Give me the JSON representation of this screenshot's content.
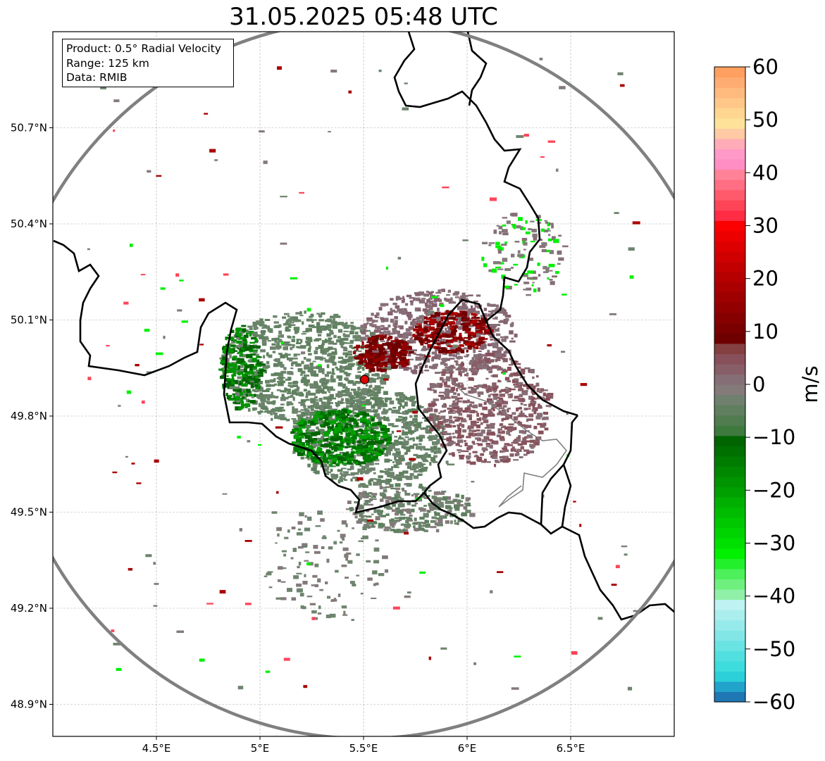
{
  "title": "31.05.2025 05:48 UTC",
  "info_box": {
    "product": "Product: 0.5° Radial Velocity",
    "range": "Range: 125 km",
    "data": "Data: RMIB"
  },
  "map": {
    "lon_range": [
      4.0,
      7.0
    ],
    "lat_range": [
      48.8,
      51.0
    ],
    "lon_ticks": [
      {
        "value": 4.5,
        "label": "4.5°E"
      },
      {
        "value": 5.0,
        "label": "5°E"
      },
      {
        "value": 5.5,
        "label": "5.5°E"
      },
      {
        "value": 6.0,
        "label": "6°E"
      },
      {
        "value": 6.5,
        "label": "6.5°E"
      }
    ],
    "lat_ticks": [
      {
        "value": 50.7,
        "label": "50.7°N"
      },
      {
        "value": 50.4,
        "label": "50.4°N"
      },
      {
        "value": 50.1,
        "label": "50.1°N"
      },
      {
        "value": 49.8,
        "label": "49.8°N"
      },
      {
        "value": 49.5,
        "label": "49.5°N"
      },
      {
        "value": 49.2,
        "label": "49.2°N"
      },
      {
        "value": 48.9,
        "label": "48.9°N"
      }
    ],
    "grid": true,
    "radar_site": {
      "lon": 5.505,
      "lat": 49.914
    },
    "range_ring_km": 125,
    "colors": {
      "border": "#000000",
      "minor_border": "#808080",
      "range_ring": "#808080",
      "radar_marker": "#e00000",
      "grid": "#b0b0b0"
    }
  },
  "colorbar": {
    "label": "m/s",
    "min": -60,
    "max": 60,
    "ticks": [
      -60,
      -50,
      -40,
      -30,
      -20,
      -10,
      0,
      10,
      20,
      30,
      40,
      50,
      60
    ],
    "tick_labels": [
      "−60",
      "−50",
      "−40",
      "−30",
      "−20",
      "−10",
      "0",
      "10",
      "20",
      "30",
      "40",
      "50",
      "60"
    ],
    "colors": [
      "#1f77b4",
      "#22a3cc",
      "#2bd0d8",
      "#3edcdc",
      "#52dfdf",
      "#6ae3e3",
      "#82e6e6",
      "#97eaea",
      "#abeeee",
      "#bff2f2",
      "#90f0a8",
      "#6ff07e",
      "#4df05a",
      "#22f02a",
      "#00f000",
      "#00e000",
      "#00d400",
      "#00c800",
      "#00bc00",
      "#00b000",
      "#00a000",
      "#009400",
      "#008800",
      "#007c00",
      "#007000",
      "#006400",
      "#3e7a3e",
      "#507c50",
      "#5f7f5f",
      "#6f806f",
      "#847a7a",
      "#866e76",
      "#885e68",
      "#87505a",
      "#844040",
      "#6e0000",
      "#7a0000",
      "#860000",
      "#920000",
      "#9e0000",
      "#aa0000",
      "#b60000",
      "#c20000",
      "#d00000",
      "#de0000",
      "#ec0000",
      "#fa0000",
      "#ff2c44",
      "#ff4458",
      "#ff5a6c",
      "#ff6e82",
      "#ff8296",
      "#ff8ec4",
      "#ff99c8",
      "#ffacb8",
      "#ffcaa4",
      "#ffe29a",
      "#ffd690",
      "#ffc888",
      "#ffba7e",
      "#ffac72",
      "#ffa060"
    ]
  }
}
